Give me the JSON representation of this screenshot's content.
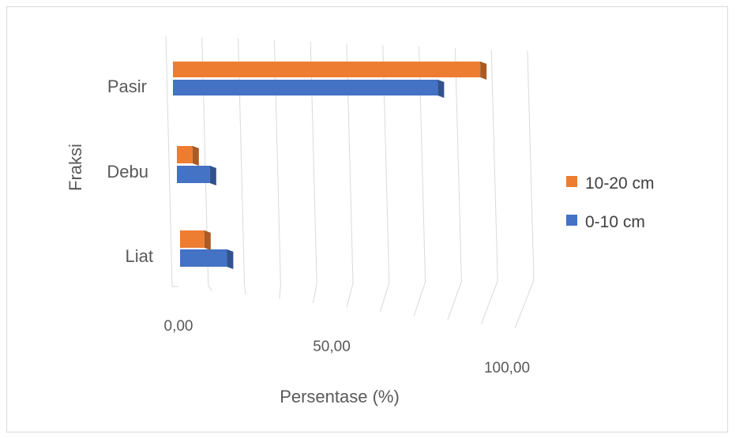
{
  "chart_data": {
    "type": "bar",
    "orientation": "horizontal",
    "categories": [
      "Pasir",
      "Debu",
      "Liat"
    ],
    "series": [
      {
        "name": "10-20 cm",
        "values": [
          90.5,
          4.5,
          7.0
        ],
        "color": "#ed7d31"
      },
      {
        "name": "0-10 cm",
        "values": [
          78.0,
          9.5,
          13.5
        ],
        "color": "#4472c4"
      }
    ],
    "x_tick_labels": [
      "0,00",
      "50,00",
      "100,00"
    ],
    "xlim": [
      0,
      100
    ],
    "xlabel": "Persentase (%)",
    "ylabel": "Fraksi",
    "legend_position": "right",
    "grid": true
  }
}
